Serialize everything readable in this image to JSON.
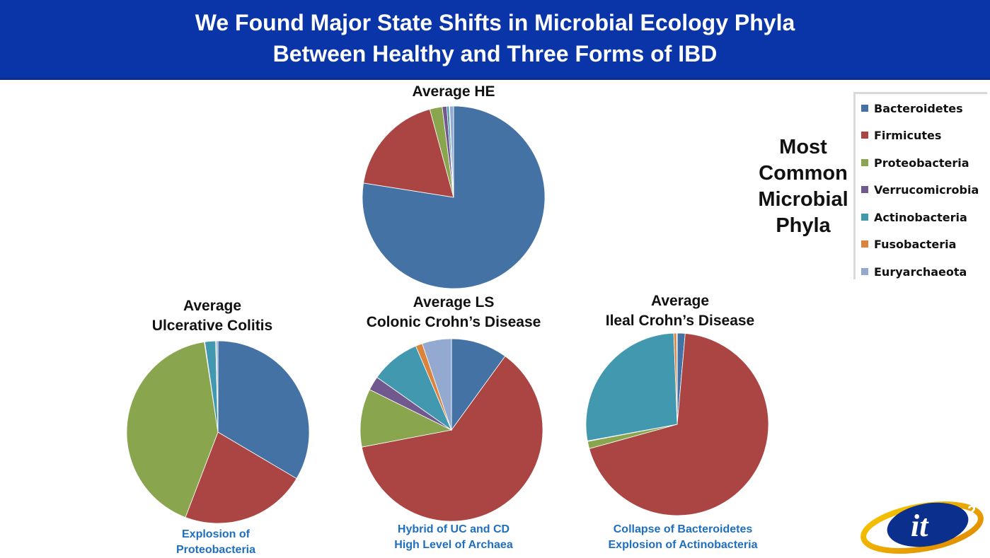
{
  "header": {
    "title_line1": "We Found Major State Shifts in Microbial Ecology Phyla",
    "title_line2": "Between Healthy and Three Forms of IBD"
  },
  "side_heading": {
    "line1": "Most",
    "line2": "Common",
    "line3": "Microbial",
    "line4": "Phyla"
  },
  "legend": {
    "items": [
      {
        "label": "Bacteroidetes",
        "color": "#4472a4"
      },
      {
        "label": "Firmicutes",
        "color": "#aa4543"
      },
      {
        "label": "Proteobacteria",
        "color": "#89a54e"
      },
      {
        "label": "Verrucomicrobia",
        "color": "#71588f"
      },
      {
        "label": "Actinobacteria",
        "color": "#4198af"
      },
      {
        "label": "Fusobacteria",
        "color": "#db843d"
      },
      {
        "label": "Euryarchaeota",
        "color": "#93a9cf"
      }
    ]
  },
  "chart_data": [
    {
      "type": "pie",
      "title_lines": [
        "Average HE"
      ],
      "caption_lines": [],
      "categories": [
        "Bacteroidetes",
        "Firmicutes",
        "Proteobacteria",
        "Verrucomicrobia",
        "Actinobacteria",
        "Fusobacteria",
        "Euryarchaeota"
      ],
      "values": [
        77.5,
        18.3,
        2.2,
        0.8,
        0.4,
        0.1,
        0.7
      ]
    },
    {
      "type": "pie",
      "title_lines": [
        "Average",
        "Ulcerative Colitis"
      ],
      "caption_lines": [
        "Explosion of",
        "Proteobacteria"
      ],
      "categories": [
        "Bacteroidetes",
        "Firmicutes",
        "Proteobacteria",
        "Verrucomicrobia",
        "Actinobacteria",
        "Fusobacteria",
        "Euryarchaeota"
      ],
      "values": [
        33.5,
        22.3,
        41.8,
        0.1,
        1.9,
        0.1,
        0.3
      ]
    },
    {
      "type": "pie",
      "title_lines": [
        "Average LS",
        "Colonic Crohn’s Disease"
      ],
      "caption_lines": [
        "Hybrid of UC and CD",
        "High Level of Archaea"
      ],
      "categories": [
        "Bacteroidetes",
        "Firmicutes",
        "Proteobacteria",
        "Verrucomicrobia",
        "Actinobacteria",
        "Fusobacteria",
        "Euryarchaeota"
      ],
      "values": [
        10.0,
        62.0,
        10.3,
        2.5,
        8.8,
        1.2,
        5.2
      ]
    },
    {
      "type": "pie",
      "title_lines": [
        "Average",
        "Ileal Crohn’s Disease"
      ],
      "caption_lines": [
        "Collapse of Bacteroidetes",
        "Explosion of Actinobacteria"
      ],
      "categories": [
        "Bacteroidetes",
        "Firmicutes",
        "Proteobacteria",
        "Verrucomicrobia",
        "Actinobacteria",
        "Fusobacteria",
        "Euryarchaeota"
      ],
      "values": [
        1.4,
        69.3,
        1.3,
        0.1,
        27.3,
        0.5,
        0.1
      ]
    }
  ],
  "logo": {
    "text": "it",
    "superscript": "2"
  },
  "colors": {
    "banner": "#0a35a8",
    "caption": "#1f6fbf"
  }
}
